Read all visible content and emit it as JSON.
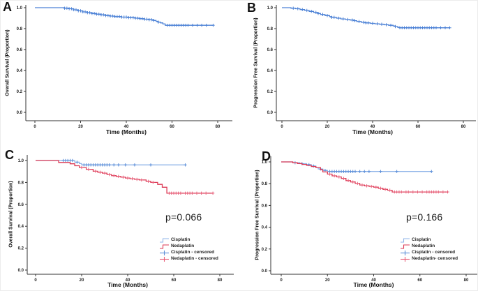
{
  "figure": {
    "background": "#ffffff",
    "panel_order": [
      "A",
      "B",
      "C",
      "D"
    ]
  },
  "colors": {
    "blue_curve": "#4d82d6",
    "cisplatin_line": "#8fb4e8",
    "cisplatin_censor": "#5b8ed8",
    "nedaplatin_line": "#dc3a55",
    "nedaplatin_censor": "#e8607a",
    "axis": "#333333",
    "text": "#111111"
  },
  "chart_data": [
    {
      "panel": "A",
      "type": "line",
      "style": "kaplan-meier",
      "ylabel": "Overall Survival (Proportion)",
      "xlabel": "Time (Months)",
      "xticks": [
        "0",
        "20",
        "40",
        "60",
        "80"
      ],
      "yticks": [
        "0.0",
        "0.2",
        "0.4",
        "0.6",
        "0.8",
        "1.0"
      ],
      "xlim": [
        0,
        80
      ],
      "ylim": [
        0,
        1.0
      ],
      "grid": false,
      "legend": null,
      "p_value": "",
      "series": [
        {
          "color": "#4d82d6",
          "censor_color": "#4d82d6",
          "steps": [
            [
              0,
              1.0
            ],
            [
              12,
              1.0
            ],
            [
              13,
              0.995
            ],
            [
              15,
              0.99
            ],
            [
              17,
              0.98
            ],
            [
              19,
              0.97
            ],
            [
              21,
              0.96
            ],
            [
              23,
              0.952
            ],
            [
              25,
              0.945
            ],
            [
              27,
              0.938
            ],
            [
              29,
              0.932
            ],
            [
              31,
              0.925
            ],
            [
              33,
              0.92
            ],
            [
              35,
              0.915
            ],
            [
              38,
              0.91
            ],
            [
              41,
              0.905
            ],
            [
              44,
              0.9
            ],
            [
              46,
              0.895
            ],
            [
              48,
              0.89
            ],
            [
              50,
              0.885
            ],
            [
              52,
              0.878
            ],
            [
              53,
              0.87
            ],
            [
              54,
              0.862
            ],
            [
              55,
              0.855
            ],
            [
              56,
              0.845
            ],
            [
              57,
              0.832
            ],
            [
              78,
              0.832
            ]
          ],
          "censor_x": [
            13,
            14,
            15,
            16,
            17,
            18,
            19,
            20,
            21,
            22,
            23,
            24,
            25,
            26,
            27,
            28,
            29,
            30,
            31,
            32,
            33,
            34,
            35,
            36,
            37,
            38,
            39,
            40,
            41,
            42,
            43,
            44,
            45,
            46,
            47,
            48,
            49,
            50,
            51,
            52,
            54,
            58,
            59,
            60,
            61,
            62,
            63,
            64,
            65,
            66,
            67,
            69,
            71,
            73,
            75,
            78
          ]
        }
      ]
    },
    {
      "panel": "B",
      "type": "line",
      "style": "kaplan-meier",
      "ylabel": "Progression Free Survival (Proportion)",
      "xlabel": "Time (Months)",
      "xticks": [
        "0",
        "20",
        "40",
        "60",
        "80"
      ],
      "yticks": [
        "0.0",
        "0.2",
        "0.4",
        "0.6",
        "0.8",
        "1.0"
      ],
      "xlim": [
        0,
        80
      ],
      "ylim": [
        0,
        1.0
      ],
      "grid": false,
      "legend": null,
      "p_value": "",
      "series": [
        {
          "color": "#4d82d6",
          "censor_color": "#4d82d6",
          "steps": [
            [
              0,
              1.0
            ],
            [
              3,
              1.0
            ],
            [
              4,
              0.995
            ],
            [
              6,
              0.99
            ],
            [
              8,
              0.982
            ],
            [
              10,
              0.974
            ],
            [
              12,
              0.965
            ],
            [
              14,
              0.955
            ],
            [
              16,
              0.945
            ],
            [
              17,
              0.935
            ],
            [
              19,
              0.925
            ],
            [
              21,
              0.915
            ],
            [
              22,
              0.908
            ],
            [
              24,
              0.9
            ],
            [
              26,
              0.893
            ],
            [
              28,
              0.887
            ],
            [
              30,
              0.882
            ],
            [
              32,
              0.876
            ],
            [
              33,
              0.868
            ],
            [
              35,
              0.86
            ],
            [
              37,
              0.855
            ],
            [
              39,
              0.85
            ],
            [
              41,
              0.846
            ],
            [
              43,
              0.842
            ],
            [
              45,
              0.837
            ],
            [
              47,
              0.832
            ],
            [
              49,
              0.826
            ],
            [
              50,
              0.82
            ],
            [
              51,
              0.813
            ],
            [
              52,
              0.808
            ],
            [
              74,
              0.808
            ]
          ],
          "censor_x": [
            5,
            7,
            9,
            11,
            13,
            15,
            16,
            18,
            20,
            22,
            23,
            25,
            27,
            29,
            31,
            32,
            34,
            36,
            37,
            38,
            40,
            42,
            44,
            46,
            48,
            50,
            52,
            53,
            54,
            55,
            56,
            57,
            58,
            59,
            60,
            61,
            62,
            63,
            64,
            65,
            66,
            67,
            68,
            70,
            72,
            74
          ]
        }
      ]
    },
    {
      "panel": "C",
      "type": "line",
      "style": "kaplan-meier",
      "ylabel": "Overall Survival (Proportion)",
      "xlabel": "Time (Months)",
      "xticks": [
        "0",
        "20",
        "40",
        "60",
        "80"
      ],
      "yticks": [
        "0.0",
        "0.2",
        "0.4",
        "0.6",
        "0.8",
        "1.0"
      ],
      "xlim": [
        0,
        80
      ],
      "ylim": [
        0,
        1.0
      ],
      "grid": false,
      "p_value": "p=0.066",
      "legend": {
        "entries": [
          {
            "label": "Cisplatin",
            "swatch": "line",
            "color": "#8fb4e8"
          },
          {
            "label": "Nedaplatin",
            "swatch": "line",
            "color": "#dc3a55"
          },
          {
            "label": "Cisplatin - censored",
            "swatch": "censor",
            "color": "#5b8ed8"
          },
          {
            "label": "Nedaplatin - censored",
            "swatch": "censor",
            "color": "#e8607a"
          }
        ]
      },
      "series": [
        {
          "name": "Cisplatin",
          "color": "#8fb4e8",
          "censor_color": "#5b8ed8",
          "steps": [
            [
              0,
              1.0
            ],
            [
              16,
              1.0
            ],
            [
              17,
              0.985
            ],
            [
              19,
              0.972
            ],
            [
              20,
              0.96
            ],
            [
              65,
              0.96
            ]
          ],
          "censor_x": [
            12,
            13,
            14,
            15,
            16,
            18,
            21,
            22,
            23,
            24,
            25,
            26,
            27,
            28,
            29,
            30,
            31,
            32,
            34,
            36,
            39,
            43,
            50,
            65
          ]
        },
        {
          "name": "Nedaplatin",
          "color": "#dc3a55",
          "censor_color": "#e8607a",
          "steps": [
            [
              0,
              1.0
            ],
            [
              9,
              1.0
            ],
            [
              10,
              0.982
            ],
            [
              15,
              0.97
            ],
            [
              17,
              0.952
            ],
            [
              19,
              0.936
            ],
            [
              22,
              0.92
            ],
            [
              25,
              0.902
            ],
            [
              27,
              0.893
            ],
            [
              29,
              0.885
            ],
            [
              31,
              0.872
            ],
            [
              33,
              0.862
            ],
            [
              35,
              0.855
            ],
            [
              37,
              0.848
            ],
            [
              39,
              0.84
            ],
            [
              41,
              0.834
            ],
            [
              43,
              0.828
            ],
            [
              45,
              0.822
            ],
            [
              48,
              0.81
            ],
            [
              50,
              0.8
            ],
            [
              53,
              0.782
            ],
            [
              55,
              0.756
            ],
            [
              57,
              0.702
            ],
            [
              77,
              0.702
            ]
          ],
          "censor_x": [
            20,
            23,
            26,
            28,
            30,
            32,
            34,
            36,
            38,
            40,
            42,
            44,
            46,
            49,
            51,
            58,
            59,
            60,
            61,
            62,
            63,
            65,
            66,
            67,
            68,
            70,
            72,
            74,
            77
          ]
        }
      ]
    },
    {
      "panel": "D",
      "type": "line",
      "style": "kaplan-meier",
      "ylabel": "Progression Free Survival (Proportion)",
      "xlabel": "Time (Months)",
      "xticks": [
        "0",
        "20",
        "40",
        "60",
        "80"
      ],
      "yticks": [
        "0.0",
        "0.2",
        "0.4",
        "0.6",
        "0.8",
        "1.0"
      ],
      "xlim": [
        0,
        80
      ],
      "ylim": [
        0,
        1.0
      ],
      "grid": false,
      "p_value": "p=0.166",
      "legend": {
        "entries": [
          {
            "label": "Cisplatin",
            "swatch": "line",
            "color": "#8fb4e8"
          },
          {
            "label": "Nedaplatin",
            "swatch": "line",
            "color": "#dc3a55"
          },
          {
            "label": "Cisplatin - censored",
            "swatch": "censor",
            "color": "#5b8ed8"
          },
          {
            "label": "Nedaplatin- censored",
            "swatch": "censor",
            "color": "#e8607a"
          }
        ]
      },
      "series": [
        {
          "name": "Cisplatin",
          "color": "#8fb4e8",
          "censor_color": "#5b8ed8",
          "steps": [
            [
              0,
              1.0
            ],
            [
              4,
              1.0
            ],
            [
              5,
              0.992
            ],
            [
              8,
              0.984
            ],
            [
              11,
              0.975
            ],
            [
              13,
              0.962
            ],
            [
              15,
              0.948
            ],
            [
              16,
              0.935
            ],
            [
              18,
              0.922
            ],
            [
              20,
              0.912
            ],
            [
              65,
              0.912
            ]
          ],
          "censor_x": [
            6,
            9,
            12,
            14,
            17,
            19,
            21,
            22,
            23,
            24,
            25,
            26,
            27,
            28,
            29,
            30,
            31,
            32,
            34,
            36,
            38,
            43,
            50,
            65
          ]
        },
        {
          "name": "Nedaplatin",
          "color": "#dc3a55",
          "censor_color": "#e8607a",
          "steps": [
            [
              0,
              1.0
            ],
            [
              4,
              1.0
            ],
            [
              5,
              0.992
            ],
            [
              7,
              0.985
            ],
            [
              9,
              0.977
            ],
            [
              11,
              0.968
            ],
            [
              13,
              0.958
            ],
            [
              15,
              0.948
            ],
            [
              17,
              0.928
            ],
            [
              18,
              0.908
            ],
            [
              20,
              0.888
            ],
            [
              22,
              0.872
            ],
            [
              24,
              0.862
            ],
            [
              26,
              0.848
            ],
            [
              28,
              0.828
            ],
            [
              30,
              0.816
            ],
            [
              32,
              0.802
            ],
            [
              34,
              0.788
            ],
            [
              36,
              0.78
            ],
            [
              38,
              0.775
            ],
            [
              40,
              0.768
            ],
            [
              42,
              0.758
            ],
            [
              44,
              0.748
            ],
            [
              46,
              0.74
            ],
            [
              48,
              0.724
            ],
            [
              72,
              0.724
            ]
          ],
          "censor_x": [
            21,
            23,
            25,
            27,
            29,
            31,
            33,
            35,
            37,
            39,
            41,
            43,
            45,
            47,
            49,
            50,
            51,
            52,
            54,
            55,
            57,
            59,
            61,
            63,
            64,
            65,
            66,
            67,
            68,
            70,
            72
          ]
        }
      ]
    }
  ]
}
